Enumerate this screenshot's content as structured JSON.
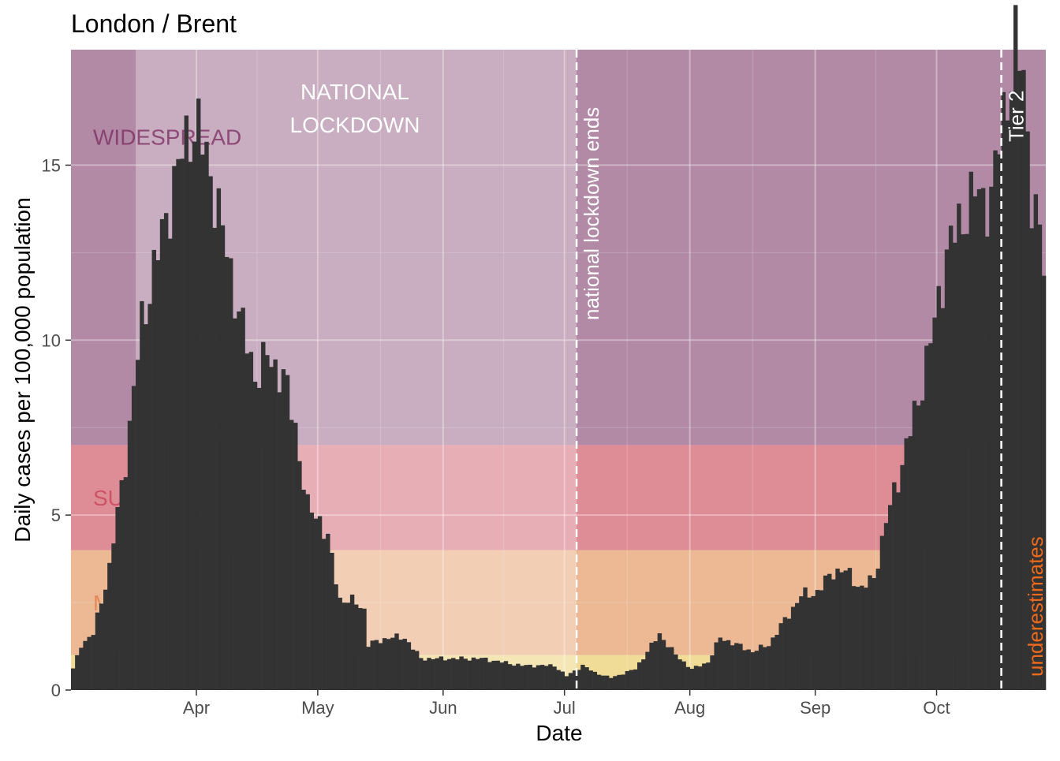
{
  "chart_data": {
    "type": "bar",
    "title": "London / Brent",
    "xlabel": "Date",
    "ylabel": "Daily cases per 100,000 population",
    "x_start": "2020-03-01",
    "x_end": "2020-10-27",
    "ylim": [
      0,
      18.3
    ],
    "yticks": [
      0,
      5,
      10,
      15
    ],
    "xticks": [
      {
        "date": "2020-04-01",
        "label": "Apr"
      },
      {
        "date": "2020-05-01",
        "label": "May"
      },
      {
        "date": "2020-06-01",
        "label": "Jun"
      },
      {
        "date": "2020-07-01",
        "label": "Jul"
      },
      {
        "date": "2020-08-01",
        "label": "Aug"
      },
      {
        "date": "2020-09-01",
        "label": "Sep"
      },
      {
        "date": "2020-10-01",
        "label": "Oct"
      }
    ],
    "grid": true,
    "bar_color": "#333333",
    "panel_background": "#ebebeb",
    "risk_bands": [
      {
        "label": "",
        "from": 0,
        "to": 1,
        "color": "#f0dc96"
      },
      {
        "label": "MODERATE",
        "from": 1,
        "to": 4,
        "color": "#ecb994"
      },
      {
        "label": "SUBSTANTIAL",
        "from": 4,
        "to": 7,
        "color": "#de8c96"
      },
      {
        "label": "WIDESPREAD",
        "from": 7,
        "to": 18.3,
        "color": "#b28aa6"
      }
    ],
    "lockdown": {
      "label_lines": [
        "NATIONAL",
        "LOCKDOWN"
      ],
      "start": "2020-03-17",
      "end": "2020-07-04"
    },
    "events": [
      {
        "date": "2020-07-04",
        "label": "national lockdown ends"
      },
      {
        "date": "2020-10-17",
        "label": "Tier 2"
      }
    ],
    "underestimates_label": "underestimates",
    "underestimates_color": "#ee6a1b",
    "anchors": [
      [
        "2020-03-01",
        0.6
      ],
      [
        "2020-03-03",
        1.3
      ],
      [
        "2020-03-06",
        1.6
      ],
      [
        "2020-03-10",
        3.5
      ],
      [
        "2020-03-14",
        6.6
      ],
      [
        "2020-03-18",
        10.5
      ],
      [
        "2020-03-22",
        12.5
      ],
      [
        "2020-03-26",
        14.5
      ],
      [
        "2020-03-30",
        16.1
      ],
      [
        "2020-04-01",
        16.0
      ],
      [
        "2020-04-04",
        14.8
      ],
      [
        "2020-04-08",
        12.5
      ],
      [
        "2020-04-12",
        10.3
      ],
      [
        "2020-04-15",
        9.0
      ],
      [
        "2020-04-18",
        9.5
      ],
      [
        "2020-04-22",
        9.0
      ],
      [
        "2020-04-25",
        7.5
      ],
      [
        "2020-04-28",
        5.2
      ],
      [
        "2020-05-01",
        4.9
      ],
      [
        "2020-05-03",
        4.3
      ],
      [
        "2020-05-06",
        2.6
      ],
      [
        "2020-05-10",
        2.5
      ],
      [
        "2020-05-12",
        2.3
      ],
      [
        "2020-05-13",
        1.3
      ],
      [
        "2020-05-18",
        1.5
      ],
      [
        "2020-05-22",
        1.5
      ],
      [
        "2020-05-26",
        0.9
      ],
      [
        "2020-06-01",
        0.9
      ],
      [
        "2020-06-10",
        0.9
      ],
      [
        "2020-06-20",
        0.7
      ],
      [
        "2020-06-28",
        0.7
      ],
      [
        "2020-07-01",
        0.4
      ],
      [
        "2020-07-05",
        0.7
      ],
      [
        "2020-07-08",
        0.5
      ],
      [
        "2020-07-12",
        0.35
      ],
      [
        "2020-07-18",
        0.6
      ],
      [
        "2020-07-24",
        1.6
      ],
      [
        "2020-07-28",
        1.0
      ],
      [
        "2020-08-01",
        0.6
      ],
      [
        "2020-08-05",
        0.8
      ],
      [
        "2020-08-08",
        1.5
      ],
      [
        "2020-08-12",
        1.3
      ],
      [
        "2020-08-16",
        1.1
      ],
      [
        "2020-08-20",
        1.3
      ],
      [
        "2020-08-24",
        2.0
      ],
      [
        "2020-08-28",
        2.7
      ],
      [
        "2020-09-01",
        2.8
      ],
      [
        "2020-09-05",
        3.4
      ],
      [
        "2020-09-08",
        3.4
      ],
      [
        "2020-09-12",
        2.9
      ],
      [
        "2020-09-15",
        3.2
      ],
      [
        "2020-09-18",
        4.8
      ],
      [
        "2020-09-22",
        6.5
      ],
      [
        "2020-09-26",
        8.3
      ],
      [
        "2020-09-30",
        10.5
      ],
      [
        "2020-10-03",
        12.5
      ],
      [
        "2020-10-06",
        13.3
      ],
      [
        "2020-10-10",
        14.2
      ],
      [
        "2020-10-14",
        14.0
      ],
      [
        "2020-10-17",
        16.5
      ],
      [
        "2020-10-20",
        18.3
      ],
      [
        "2020-10-22",
        17.6
      ],
      [
        "2020-10-24",
        14.2
      ],
      [
        "2020-10-27",
        12.2
      ]
    ]
  }
}
